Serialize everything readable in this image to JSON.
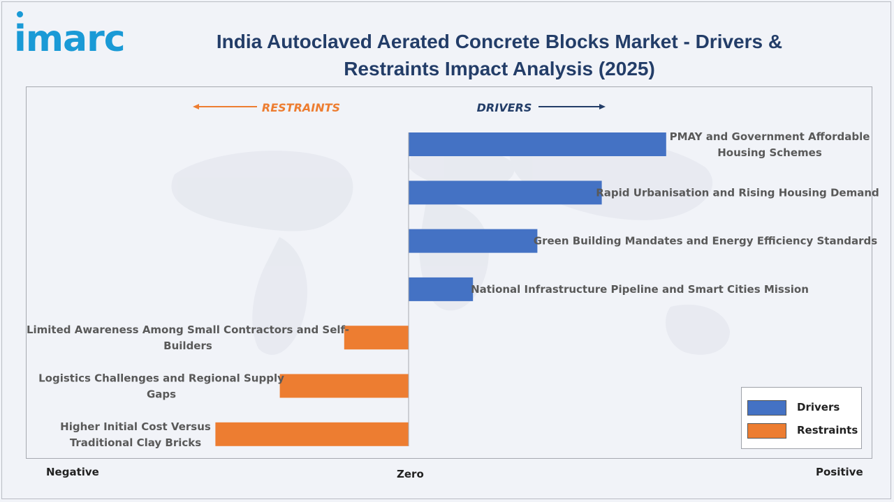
{
  "brand": {
    "logo_text": "imarc",
    "accent": "#1a9ad6"
  },
  "title": "India Autoclaved Aerated Concrete Blocks Market - Drivers & Restraints Impact Analysis (2025)",
  "colors": {
    "drivers": "#4472c4",
    "restraints": "#ed7d31",
    "title": "#233d68"
  },
  "header_labels": {
    "restraints": "RESTRAINTS",
    "drivers": "DRIVERS"
  },
  "axis": {
    "negative": "Negative",
    "zero": "Zero",
    "positive": "Positive"
  },
  "legend": {
    "drivers": "Drivers",
    "restraints": "Restraints"
  },
  "chart_data": {
    "type": "bar",
    "orientation": "horizontal",
    "categories": [
      "PMAY and Government Affordable Housing Schemes",
      "Rapid Urbanisation and Rising Housing Demand",
      "Green Building Mandates and Energy Efficiency Standards",
      "National Infrastructure Pipeline and Smart Cities Mission",
      "Limited Awareness Among Small Contractors and Self-Builders",
      "Logistics Challenges and Regional Supply Gaps",
      "Higher Initial Cost Versus Traditional Clay Bricks"
    ],
    "series": [
      {
        "name": "Drivers",
        "values": [
          4,
          3,
          2,
          1,
          null,
          null,
          null
        ]
      },
      {
        "name": "Restraints",
        "values": [
          null,
          null,
          null,
          null,
          -1,
          -2,
          -3
        ]
      }
    ],
    "xlim": [
      -6,
      7
    ],
    "legend_position": "bottom-right",
    "grid": false
  }
}
